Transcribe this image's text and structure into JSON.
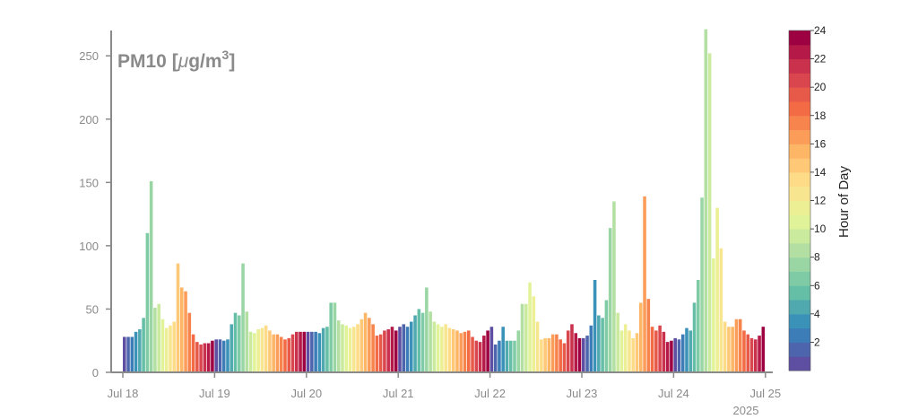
{
  "chart_data": {
    "type": "bar",
    "title": "PM10 [μg/m³]",
    "title_parts": {
      "main": "PM10 [",
      "mu": "μ",
      "unit": "g/m",
      "sup": "3",
      "close": "]"
    },
    "xlabel": "",
    "ylabel": "",
    "ylim": [
      0,
      270
    ],
    "yticks": [
      0,
      50,
      100,
      150,
      200,
      250
    ],
    "xticks": [
      "Jul 18",
      "Jul 19",
      "Jul 20",
      "Jul 21",
      "Jul 22",
      "Jul 23",
      "Jul 24",
      "Jul 25"
    ],
    "x_year_label": "2025",
    "start": "2025-07-18 00:00",
    "interval": "1 hour",
    "values": [
      28,
      28,
      28,
      32,
      34,
      43,
      110,
      151,
      51,
      54,
      42,
      35,
      37,
      40,
      86,
      67,
      64,
      47,
      30,
      24,
      22,
      23,
      23,
      25,
      26,
      26,
      25,
      26,
      38,
      47,
      45,
      86,
      48,
      32,
      31,
      34,
      35,
      37,
      33,
      30,
      30,
      28,
      26,
      27,
      30,
      32,
      32,
      32,
      32,
      32,
      32,
      31,
      35,
      36,
      55,
      55,
      41,
      38,
      37,
      35,
      36,
      38,
      42,
      47,
      43,
      38,
      29,
      30,
      33,
      34,
      36,
      33,
      36,
      38,
      36,
      40,
      45,
      50,
      47,
      67,
      48,
      40,
      38,
      36,
      38,
      35,
      34,
      33,
      31,
      32,
      33,
      28,
      25,
      24,
      29,
      33,
      36,
      22,
      25,
      36,
      25,
      25,
      25,
      33,
      54,
      54,
      71,
      60,
      40,
      26,
      27,
      27,
      30,
      30,
      26,
      23,
      33,
      38,
      31,
      27,
      27,
      29,
      37,
      73,
      45,
      43,
      57,
      114,
      135,
      47,
      33,
      38,
      33,
      27,
      31,
      55,
      139,
      58,
      36,
      33,
      37,
      32,
      24,
      25,
      27,
      26,
      30,
      35,
      33,
      55,
      73,
      138,
      271,
      252,
      90,
      130,
      98,
      40,
      36,
      36,
      42,
      42,
      33,
      30,
      27,
      26,
      29,
      36
    ],
    "colorbar": {
      "label": "Hour of Day",
      "range": [
        0,
        24
      ],
      "ticks": [
        2,
        4,
        6,
        8,
        10,
        12,
        14,
        16,
        18,
        20,
        22,
        24
      ]
    },
    "colormap": [
      "#5e4fa2",
      "#3288bd",
      "#66c2a5",
      "#abdda4",
      "#e6f598",
      "#fee08b",
      "#fdae61",
      "#f46d43",
      "#d53e4f",
      "#9e0142"
    ],
    "grid": false,
    "legend": "none"
  }
}
